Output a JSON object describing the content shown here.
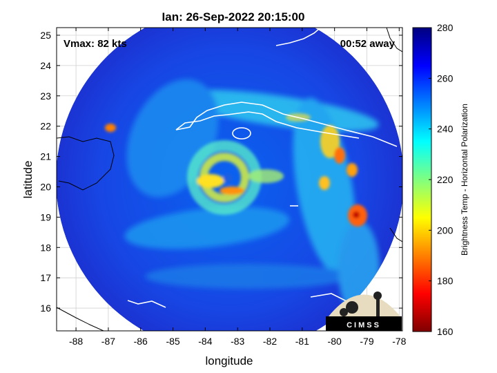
{
  "chart_data": {
    "type": "heatmap",
    "title": "Ian: 26-Sep-2022 20:15:00",
    "xlabel": "longitude",
    "ylabel": "latitude",
    "xlim": [
      -88.6,
      -77.9
    ],
    "ylim": [
      15.25,
      25.25
    ],
    "xticks": [
      -88,
      -87,
      -86,
      -85,
      -84,
      -83,
      -82,
      -81,
      -80,
      -79,
      -78
    ],
    "yticks": [
      16,
      17,
      18,
      19,
      20,
      21,
      22,
      23,
      24,
      25
    ],
    "grid": true,
    "annotations": {
      "vmax": "Vmax: 82 kts",
      "time_away": "00:52 away"
    },
    "storm_center": {
      "lon": -83.6,
      "lat": 20.05
    },
    "swath_center": {
      "lon": -83.5,
      "lat": 20.2
    },
    "colorbar": {
      "label": "Brightness Temp - Horizontal Polarization",
      "min": 160,
      "max": 280,
      "ticks": [
        160,
        180,
        200,
        220,
        240,
        260,
        280
      ],
      "colormap": [
        "#800000",
        "#ff0000",
        "#ff8000",
        "#ffff00",
        "#80ff80",
        "#00ffff",
        "#0080ff",
        "#0000ff",
        "#000080"
      ]
    },
    "features": [
      {
        "lon": -83.6,
        "lat": 20.05,
        "value": 205
      },
      {
        "lon": -83.3,
        "lat": 19.85,
        "value": 185
      },
      {
        "lon": -82.8,
        "lat": 20.0,
        "value": 190
      },
      {
        "lon": -80.3,
        "lat": 21.1,
        "value": 215
      },
      {
        "lon": -79.2,
        "lat": 18.95,
        "value": 185
      },
      {
        "lon": -79.7,
        "lat": 20.5,
        "value": 215
      }
    ]
  },
  "logo": {
    "text": "CIMSS"
  },
  "colors": {
    "background": "#ffffff",
    "coastline": "#ffffff",
    "axis": "#000000"
  }
}
